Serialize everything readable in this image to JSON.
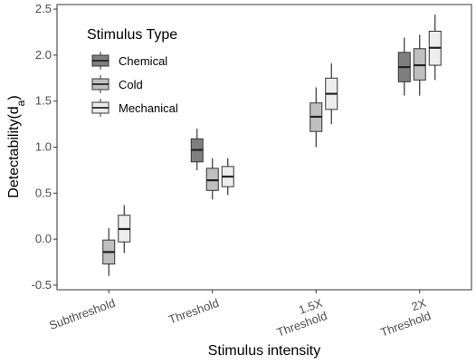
{
  "chart_data": {
    "type": "box",
    "xlabel": "Stimulus intensity",
    "ylabel": "Detectability(d",
    "ylabel_sub": "a",
    "ylabel_close": ")",
    "ylim": [
      -0.55,
      2.55
    ],
    "yticks": [
      "-0.5",
      "0.0",
      "0.5",
      "1.0",
      "1.5",
      "2.0",
      "2.5"
    ],
    "ytick_values": [
      -0.5,
      0,
      0.5,
      1.0,
      1.5,
      2.0,
      2.5
    ],
    "categories": [
      {
        "lines": [
          "Subthreshold"
        ]
      },
      {
        "lines": [
          "Threshold"
        ]
      },
      {
        "lines": [
          "1.5X",
          "Threshold"
        ]
      },
      {
        "lines": [
          "2X",
          "Threshold"
        ]
      }
    ],
    "legend": {
      "title": "Stimulus Type",
      "placement": "top-left",
      "items": [
        {
          "label": "Chemical",
          "color": "#7f7f7f"
        },
        {
          "label": "Cold",
          "color": "#bfbfbf"
        },
        {
          "label": "Mechanical",
          "color": "#ededed"
        }
      ]
    },
    "series": [
      {
        "name": "Chemical",
        "color": "#7f7f7f",
        "boxes": [
          null,
          {
            "min": 0.75,
            "q1": 0.84,
            "median": 0.97,
            "q3": 1.09,
            "max": 1.2
          },
          null,
          {
            "min": 1.56,
            "q1": 1.71,
            "median": 1.87,
            "q3": 2.03,
            "max": 2.19
          }
        ]
      },
      {
        "name": "Cold",
        "color": "#bfbfbf",
        "boxes": [
          {
            "min": -0.4,
            "q1": -0.27,
            "median": -0.14,
            "q3": -0.01,
            "max": 0.12
          },
          {
            "min": 0.43,
            "q1": 0.53,
            "median": 0.64,
            "q3": 0.77,
            "max": 0.88
          },
          {
            "min": 1.0,
            "q1": 1.17,
            "median": 1.33,
            "q3": 1.48,
            "max": 1.65
          },
          {
            "min": 1.56,
            "q1": 1.73,
            "median": 1.89,
            "q3": 2.07,
            "max": 2.22
          }
        ]
      },
      {
        "name": "Mechanical",
        "color": "#ededed",
        "boxes": [
          {
            "min": -0.15,
            "q1": -0.03,
            "median": 0.11,
            "q3": 0.26,
            "max": 0.37
          },
          {
            "min": 0.48,
            "q1": 0.57,
            "median": 0.68,
            "q3": 0.79,
            "max": 0.88
          },
          {
            "min": 1.25,
            "q1": 1.41,
            "median": 1.58,
            "q3": 1.75,
            "max": 1.91
          },
          {
            "min": 1.73,
            "q1": 1.89,
            "median": 2.08,
            "q3": 2.26,
            "max": 2.44
          }
        ]
      }
    ],
    "grid": false
  }
}
